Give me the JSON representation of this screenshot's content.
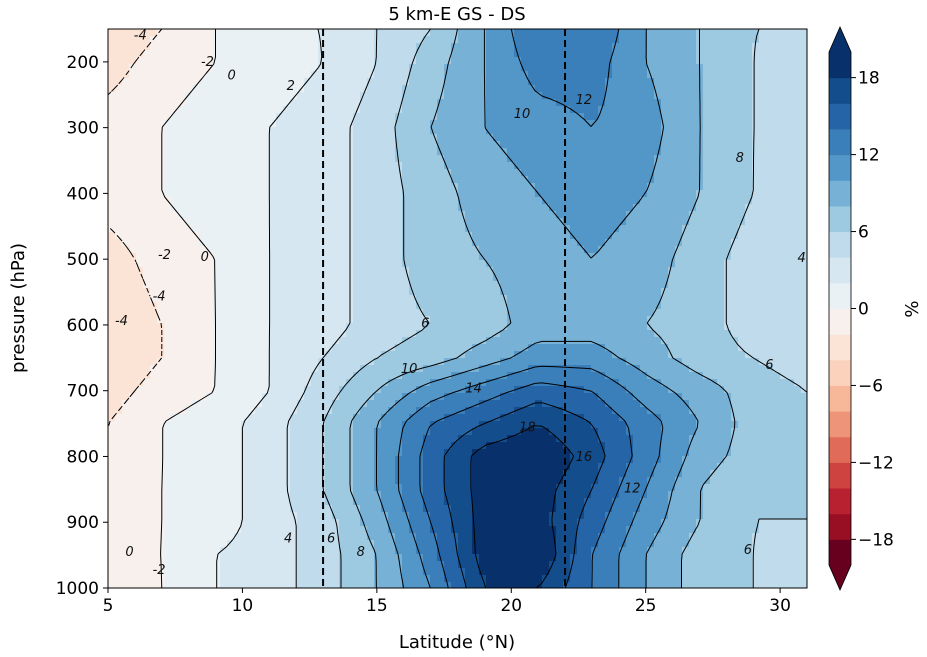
{
  "chart_data": {
    "type": "heatmap",
    "subtype": "filled-contour",
    "title": "5 km-E GS - DS",
    "xlabel": "Latitude (°N)",
    "ylabel": "pressure (hPa)",
    "xlim": [
      5,
      31
    ],
    "ylim": [
      1000,
      150
    ],
    "y_axis_inverted": true,
    "x_ticks": [
      5,
      10,
      15,
      20,
      25,
      30
    ],
    "y_ticks": [
      200,
      300,
      400,
      500,
      600,
      700,
      800,
      900,
      1000
    ],
    "vertical_lines": [
      13,
      22
    ],
    "vertical_line_style": "dashed",
    "colorbar": {
      "label": "%",
      "ticks": [
        18,
        12,
        6,
        0,
        -6,
        -12,
        -18
      ],
      "levels": [
        -20,
        -18,
        -16,
        -14,
        -12,
        -10,
        -8,
        -6,
        -4,
        -2,
        0,
        2,
        4,
        6,
        8,
        10,
        12,
        14,
        16,
        18,
        20
      ],
      "colormap": "RdBu",
      "extend": "both",
      "colors": [
        "#67001f",
        "#980f23",
        "#b8212f",
        "#ce4240",
        "#e06b59",
        "#ee9478",
        "#f7b799",
        "#fbd2bc",
        "#fbe4d6",
        "#f8f0ec",
        "#eaf1f5",
        "#d6e7f1",
        "#c0dcec",
        "#9ecae1",
        "#77b1d6",
        "#5396c8",
        "#3a7fb9",
        "#2565a7",
        "#134d8c",
        "#08306b"
      ]
    },
    "grid": {
      "lats": [
        5,
        7,
        9,
        11,
        13,
        15,
        17,
        19,
        21,
        23,
        25,
        27,
        29,
        31
      ],
      "pressures": [
        150,
        200,
        300,
        400,
        500,
        600,
        650,
        700,
        750,
        800,
        850,
        900,
        950,
        1000
      ],
      "values": [
        [
          -4,
          -2,
          0,
          2,
          2,
          4,
          6,
          10,
          14,
          14,
          10,
          8,
          6,
          6
        ],
        [
          -3,
          -1,
          0,
          1,
          2,
          4,
          7,
          10,
          13,
          13,
          10,
          8,
          6,
          5
        ],
        [
          -1,
          0,
          1,
          2,
          3,
          5,
          8,
          10,
          11,
          12,
          11,
          8,
          6,
          5
        ],
        [
          -1,
          0,
          1,
          2,
          3,
          5,
          7,
          9,
          10,
          11,
          10,
          8,
          6,
          4
        ],
        [
          -3,
          -1,
          0,
          2,
          3,
          5,
          7,
          8,
          9,
          10,
          9,
          7,
          5,
          4
        ],
        [
          -4,
          -2,
          0,
          2,
          3,
          5,
          6,
          7,
          9,
          9,
          8,
          7,
          5,
          4
        ],
        [
          -4,
          -2,
          0,
          2,
          4,
          6,
          7,
          9,
          11,
          11,
          9,
          7,
          6,
          5
        ],
        [
          -3,
          -1,
          0,
          2,
          5,
          8,
          11,
          13,
          15,
          14,
          11,
          9,
          7,
          6
        ],
        [
          -2,
          0,
          1,
          3,
          6,
          10,
          14,
          16,
          18,
          16,
          13,
          10,
          7,
          6
        ],
        [
          -2,
          0,
          1,
          3,
          6,
          10,
          15,
          19,
          20,
          17,
          13,
          9,
          7,
          6
        ],
        [
          -1,
          0,
          1,
          3,
          6,
          10,
          15,
          19,
          19,
          16,
          12,
          8,
          6,
          6
        ],
        [
          -1,
          0,
          1,
          3,
          5,
          9,
          14,
          19,
          19,
          15,
          11,
          8,
          6,
          6
        ],
        [
          -1,
          0,
          2,
          3,
          5,
          8,
          13,
          19,
          20,
          14,
          10,
          7,
          6,
          5
        ],
        [
          -2,
          0,
          2,
          3,
          5,
          8,
          12,
          18,
          18,
          14,
          10,
          7,
          6,
          5
        ]
      ]
    },
    "contour_labels": [
      {
        "text": "-4",
        "lat": 6.2,
        "p": 160
      },
      {
        "text": "-2",
        "lat": 8.7,
        "p": 200
      },
      {
        "text": "0",
        "lat": 9.6,
        "p": 221
      },
      {
        "text": "2",
        "lat": 11.8,
        "p": 237
      },
      {
        "text": "10",
        "lat": 20.4,
        "p": 279
      },
      {
        "text": "12",
        "lat": 22.7,
        "p": 258
      },
      {
        "text": "8",
        "lat": 28.5,
        "p": 346
      },
      {
        "text": "0",
        "lat": 8.6,
        "p": 497
      },
      {
        "text": "-2",
        "lat": 7.1,
        "p": 494
      },
      {
        "text": "-4",
        "lat": 6.9,
        "p": 557
      },
      {
        "text": "-4",
        "lat": 5.5,
        "p": 594
      },
      {
        "text": "6",
        "lat": 16.8,
        "p": 598
      },
      {
        "text": "4",
        "lat": 30.8,
        "p": 498
      },
      {
        "text": "10",
        "lat": 16.2,
        "p": 667
      },
      {
        "text": "14",
        "lat": 18.6,
        "p": 697
      },
      {
        "text": "6",
        "lat": 29.6,
        "p": 661
      },
      {
        "text": "18",
        "lat": 20.6,
        "p": 756
      },
      {
        "text": "16",
        "lat": 22.7,
        "p": 801
      },
      {
        "text": "12",
        "lat": 24.5,
        "p": 849
      },
      {
        "text": "4",
        "lat": 11.7,
        "p": 925
      },
      {
        "text": "6",
        "lat": 13.3,
        "p": 925
      },
      {
        "text": "8",
        "lat": 14.4,
        "p": 945
      },
      {
        "text": "6",
        "lat": 28.8,
        "p": 942
      },
      {
        "text": "0",
        "lat": 5.8,
        "p": 945
      },
      {
        "text": "-2",
        "lat": 6.9,
        "p": 973
      }
    ]
  }
}
